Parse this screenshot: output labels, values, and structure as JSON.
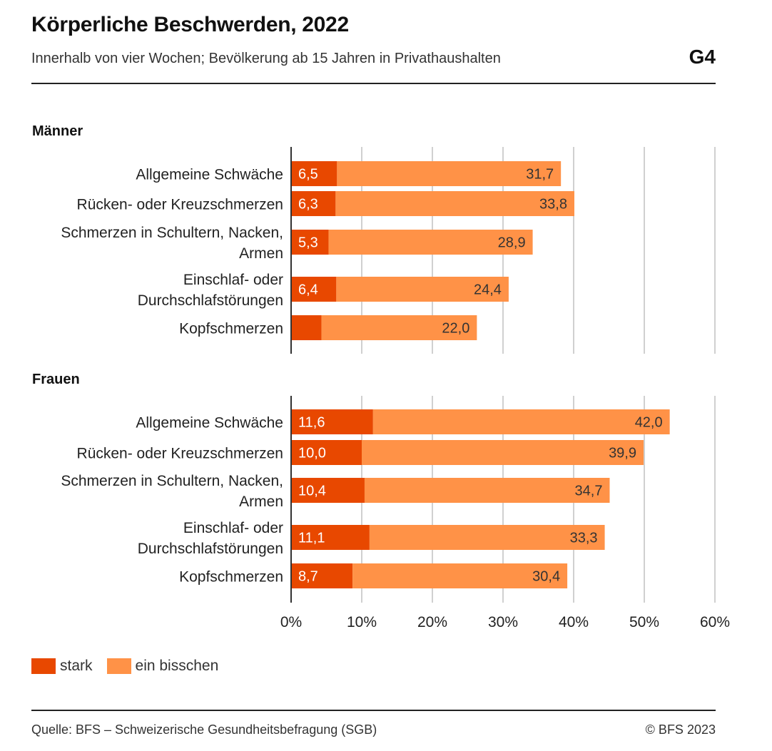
{
  "header": {
    "title": "Körperliche Beschwerden, 2022",
    "subtitle": "Innerhalb von vier Wochen; Bevölkerung ab 15 Jahren in Privathaushalten",
    "graphic_number": "G4"
  },
  "footer": {
    "source": "Quelle: BFS – Schweizerische Gesundheitsbefragung (SGB)",
    "copyright": "© BFS 2023"
  },
  "colors": {
    "stark": "#E84800",
    "ein_bisschen": "#FF9247",
    "grid": "#d0d0d0",
    "axis": "#333333"
  },
  "chart_data": {
    "type": "bar",
    "orientation": "horizontal",
    "stacked": true,
    "title": "Körperliche Beschwerden, 2022",
    "subtitle": "Innerhalb von vier Wochen; Bevölkerung ab 15 Jahren in Privathaushalten",
    "xlim": [
      0,
      60
    ],
    "x_ticks": [
      "0%",
      "10%",
      "20%",
      "30%",
      "40%",
      "50%",
      "60%"
    ],
    "x_tick_values": [
      0,
      10,
      20,
      30,
      40,
      50,
      60
    ],
    "grid": true,
    "legend": {
      "position": "bottom-left",
      "entries": [
        "stark",
        "ein bisschen"
      ]
    },
    "panels": [
      {
        "name": "Männer",
        "categories": [
          [
            "Allgemeine Schwäche"
          ],
          [
            "Rücken- oder Kreuzschmerzen"
          ],
          [
            "Schmerzen in Schultern, Nacken,",
            "Armen"
          ],
          [
            "Einschlaf- oder",
            "Durchschlafstörungen"
          ],
          [
            "Kopfschmerzen"
          ]
        ],
        "series": [
          {
            "name": "stark",
            "values": [
              6.5,
              6.3,
              5.3,
              6.4,
              4.3
            ],
            "labels": [
              "6,5",
              "6,3",
              "5,3",
              "6,4",
              ""
            ]
          },
          {
            "name": "ein bisschen",
            "values": [
              31.7,
              33.8,
              28.9,
              24.4,
              22.0
            ],
            "labels": [
              "31,7",
              "33,8",
              "28,9",
              "24,4",
              "22,0"
            ]
          }
        ]
      },
      {
        "name": "Frauen",
        "categories": [
          [
            "Allgemeine Schwäche"
          ],
          [
            "Rücken- oder Kreuzschmerzen"
          ],
          [
            "Schmerzen in Schultern, Nacken,",
            "Armen"
          ],
          [
            "Einschlaf- oder",
            "Durchschlafstörungen"
          ],
          [
            "Kopfschmerzen"
          ]
        ],
        "series": [
          {
            "name": "stark",
            "values": [
              11.6,
              10.0,
              10.4,
              11.1,
              8.7
            ],
            "labels": [
              "11,6",
              "10,0",
              "10,4",
              "11,1",
              "8,7"
            ]
          },
          {
            "name": "ein bisschen",
            "values": [
              42.0,
              39.9,
              34.7,
              33.3,
              30.4
            ],
            "labels": [
              "42,0",
              "39,9",
              "34,7",
              "33,3",
              "30,4"
            ]
          }
        ]
      }
    ]
  }
}
